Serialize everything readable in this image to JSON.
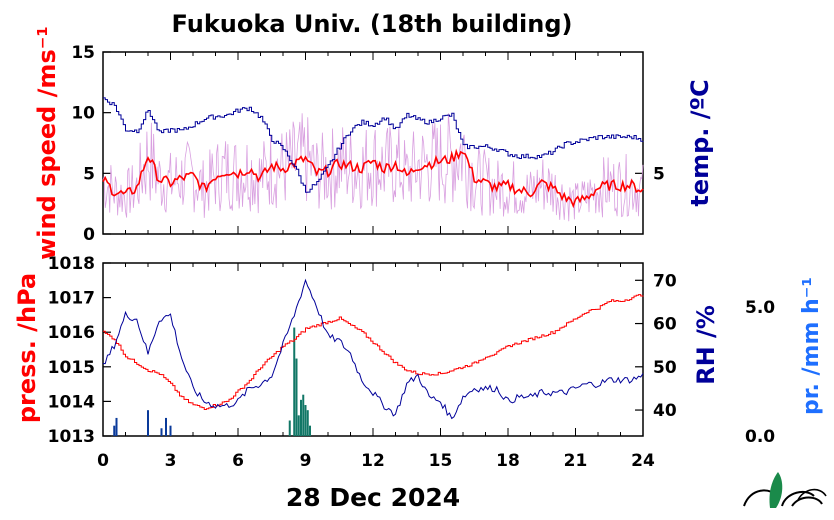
{
  "title": "Fukuoka Univ. (18th building)",
  "date_label": "28 Dec 2024",
  "colors": {
    "wind_raw": "#d9a0e0",
    "wind_mean": "#ff0000",
    "temperature": "#000099",
    "pressure": "#ff0000",
    "humidity": "#000099",
    "precip_axis": "#1e6fff",
    "precip_bars_blue": "#0a3a9a",
    "precip_bars_teal": "#117766"
  },
  "chart_data": [
    {
      "type": "line",
      "panel": "top",
      "ylabel_left": "wind speed /ms⁻¹",
      "ylabel_right": "temp. /ºC",
      "left_ticks": [
        "0",
        "5",
        "10",
        "15"
      ],
      "right_ticks": [
        "5"
      ],
      "xlim": [
        0,
        24
      ],
      "ylim_left": [
        0,
        15
      ],
      "series": [
        {
          "axis": "left",
          "x": [
            0,
            0.5,
            1,
            1.5,
            2,
            2.5,
            3,
            3.5,
            4,
            4.5,
            5,
            5.5,
            6,
            6.5,
            7,
            7.5,
            8,
            8.5,
            9,
            9.5,
            10,
            10.5,
            11,
            11.5,
            12,
            12.5,
            13,
            13.5,
            14,
            14.5,
            15,
            15.5,
            16,
            16.5,
            17,
            17.5,
            18,
            18.5,
            19,
            19.5,
            20,
            20.5,
            21,
            21.5,
            22,
            22.5,
            23,
            23.5,
            24
          ],
          "values": [
            4.5,
            3.5,
            3.2,
            3.8,
            6.5,
            4.5,
            4.2,
            4.6,
            4.8,
            3.7,
            4.8,
            5.2,
            5.0,
            5.4,
            4.6,
            5.6,
            5.4,
            5.8,
            6.2,
            5.0,
            5.2,
            5.8,
            5.6,
            5.4,
            6.0,
            5.4,
            5.8,
            4.8,
            5.6,
            5.8,
            6.0,
            6.2,
            7.0,
            4.6,
            4.2,
            3.8,
            4.0,
            3.6,
            3.4,
            4.2,
            3.8,
            3.0,
            2.6,
            3.0,
            3.8,
            4.0,
            4.0,
            4.0,
            3.6
          ]
        },
        {
          "axis": "left",
          "x": [
            0,
            0.5,
            1,
            1.5,
            2,
            2.5,
            3,
            3.5,
            4,
            4.5,
            5,
            5.5,
            6,
            6.5,
            7,
            7.5,
            8,
            8.5,
            9,
            9.5,
            10,
            10.5,
            11,
            11.5,
            12,
            12.5,
            13,
            13.5,
            14,
            14.5,
            15,
            15.5,
            16,
            16.5,
            17,
            17.5,
            18,
            18.5,
            19,
            19.5,
            20,
            20.5,
            21,
            21.5,
            22,
            22.5,
            23,
            23.5,
            24
          ],
          "values": [
            11.2,
            10.6,
            8.6,
            8.5,
            10.2,
            8.3,
            8.6,
            8.5,
            9.0,
            9.5,
            9.7,
            9.8,
            10.2,
            10.4,
            9.6,
            7.8,
            7.0,
            5.6,
            3.5,
            4.2,
            5.6,
            7.2,
            8.6,
            9.2,
            9.0,
            9.6,
            8.6,
            9.8,
            9.4,
            9.2,
            9.6,
            9.8,
            7.2,
            7.2,
            7.2,
            7.0,
            6.6,
            6.4,
            6.4,
            6.4,
            6.8,
            7.4,
            7.6,
            7.8,
            8.0,
            8.0,
            8.0,
            8.0,
            7.8
          ]
        }
      ]
    },
    {
      "type": "line",
      "panel": "bottom",
      "ylabel_left": "press. /hPa",
      "ylabel_right": "RH /%",
      "ylabel_far_right": "pr. /mm h⁻¹",
      "left_ticks": [
        "1013",
        "1014",
        "1015",
        "1016",
        "1017",
        "1018"
      ],
      "right_ticks": [
        "40",
        "50",
        "60",
        "70"
      ],
      "far_right_ticks": [
        "0.0",
        "5.0"
      ],
      "x_ticks": [
        "0",
        "3",
        "6",
        "9",
        "12",
        "15",
        "18",
        "21",
        "24"
      ],
      "xlim": [
        0,
        24
      ],
      "ylim_left": [
        1013,
        1018
      ],
      "ylim_right": [
        34,
        74
      ],
      "ylim_far_right": [
        0,
        6.7
      ],
      "series": [
        {
          "axis": "left",
          "x": [
            0,
            0.5,
            1,
            1.5,
            2,
            2.5,
            3,
            3.5,
            4,
            4.5,
            5,
            5.5,
            6,
            6.5,
            7,
            7.5,
            8,
            8.5,
            9,
            9.5,
            10,
            10.5,
            11,
            11.5,
            12,
            12.5,
            13,
            13.5,
            14,
            14.5,
            15,
            15.5,
            16,
            16.5,
            17,
            17.5,
            18,
            18.5,
            19,
            19.5,
            20,
            20.5,
            21,
            21.5,
            22,
            22.5,
            23,
            23.5,
            24
          ],
          "values": [
            1016.0,
            1015.8,
            1015.3,
            1015.1,
            1014.9,
            1014.8,
            1014.5,
            1014.1,
            1013.9,
            1013.8,
            1013.9,
            1014.0,
            1014.3,
            1014.6,
            1015.0,
            1015.3,
            1015.6,
            1015.8,
            1016.1,
            1016.2,
            1016.3,
            1016.4,
            1016.2,
            1016.0,
            1015.7,
            1015.4,
            1015.1,
            1014.9,
            1014.8,
            1014.8,
            1014.8,
            1014.9,
            1015.0,
            1015.1,
            1015.3,
            1015.4,
            1015.6,
            1015.7,
            1015.8,
            1015.9,
            1016.0,
            1016.2,
            1016.4,
            1016.6,
            1016.7,
            1016.9,
            1016.9,
            1017.0,
            1017.1
          ]
        },
        {
          "axis": "right",
          "x": [
            0,
            0.5,
            1,
            1.5,
            2,
            2.5,
            3,
            3.5,
            4,
            4.5,
            5,
            5.5,
            6,
            6.5,
            7,
            7.5,
            8,
            8.5,
            9,
            9.5,
            10,
            10.5,
            11,
            11.5,
            12,
            12.5,
            13,
            13.5,
            14,
            14.5,
            15,
            15.5,
            16,
            16.5,
            17,
            17.5,
            18,
            18.5,
            19,
            19.5,
            20,
            20.5,
            21,
            21.5,
            22,
            22.5,
            23,
            23.5,
            24
          ],
          "values": [
            50,
            55,
            62,
            61,
            53,
            61,
            62,
            52,
            45,
            42,
            41,
            41,
            42,
            45,
            46,
            48,
            55,
            62,
            70,
            64,
            57,
            56,
            53,
            47,
            44,
            41,
            39,
            46,
            48,
            43,
            42,
            38,
            43,
            45,
            45,
            45,
            42,
            43,
            43,
            44,
            44,
            44,
            45,
            46,
            46,
            47,
            47,
            47,
            48
          ]
        },
        {
          "type": "bar",
          "axis": "far_right",
          "x": [
            0.5,
            0.6,
            2.0,
            2.6,
            2.8,
            3.0,
            8.3,
            8.5,
            8.6,
            8.7,
            8.8,
            8.9,
            9.0,
            9.1,
            9.2
          ],
          "values": [
            0.4,
            0.7,
            1.0,
            0.3,
            0.7,
            0.4,
            0.6,
            4.2,
            3.0,
            0.8,
            1.4,
            1.6,
            1.2,
            1.0,
            0.4
          ]
        }
      ]
    }
  ]
}
